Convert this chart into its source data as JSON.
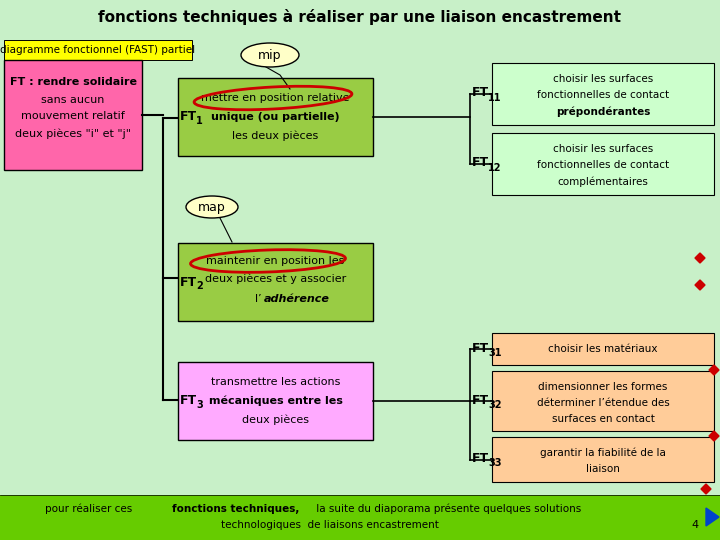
{
  "title": "fonctions techniques à réaliser par une liaison encastrement",
  "bg_color": "#c8f0c8",
  "footer_bg": "#66cc00",
  "diag_label": "diagramme fonctionnel (FAST) partiel",
  "diag_label_bg": "#ffff00",
  "mip_label": "mip",
  "map_label": "map",
  "ft_main_bg": "#ff66aa",
  "ft_main_text_line1": "FT : rendre solidaire",
  "ft_main_text_line2": "sans aucun",
  "ft_main_text_line3": "mouvement relatif",
  "ft_main_text_line4": "deux pièces \"i\" et \"j\"",
  "ft1_line1": "mettre en position relative",
  "ft1_line2": "unique (ou partielle)",
  "ft1_line3": "les deux pièces",
  "ft1_bg": "#99cc44",
  "ft2_line1": "maintenir en position les",
  "ft2_line2": "deux pièces et y associer",
  "ft2_line3": "l’",
  "ft2_italic": "adhérence",
  "ft2_bg": "#99cc44",
  "ft3_line1": "transmettre les actions",
  "ft3_line2": "mécaniques entre les",
  "ft3_line3": "deux pièces",
  "ft3_bg": "#ffaaff",
  "ft11_line1": "choisir les surfaces",
  "ft11_line2": "fonctionnelles de contact",
  "ft11_line3": "prépondérantes",
  "ft11_bg": "#ccffcc",
  "ft12_line1": "choisir les surfaces",
  "ft12_line2": "fonctionnelles de contact",
  "ft12_line3": "complémentaires",
  "ft12_bg": "#ccffcc",
  "ft31_text": "choisir les matériaux",
  "ft31_bg": "#ffcc99",
  "ft32_line1": "dimensionner les formes",
  "ft32_line2": "déterminer l’étendue des",
  "ft32_line3": "surfaces en contact",
  "ft32_bg": "#ffcc99",
  "ft33_line1": "garantir la fiabilité de la",
  "ft33_line2": "liaison",
  "ft33_bg": "#ffcc99",
  "diamond_color": "#cc0000",
  "arrow_color": "#0044cc"
}
